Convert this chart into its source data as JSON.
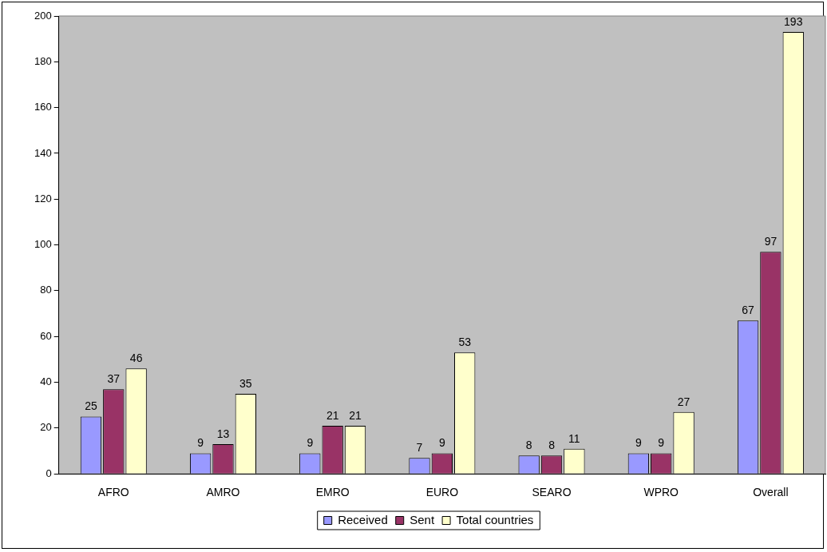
{
  "chart_data": {
    "type": "bar",
    "categories": [
      "AFRO",
      "AMRO",
      "EMRO",
      "EURO",
      "SEARO",
      "WPRO",
      "Overall"
    ],
    "series": [
      {
        "name": "Received",
        "color": "#9999ff",
        "values": [
          25,
          9,
          9,
          7,
          8,
          9,
          67
        ]
      },
      {
        "name": "Sent",
        "color": "#993366",
        "values": [
          37,
          13,
          21,
          9,
          8,
          9,
          97
        ]
      },
      {
        "name": "Total countries",
        "color": "#ffffcc",
        "values": [
          46,
          35,
          21,
          53,
          11,
          27,
          193
        ]
      }
    ],
    "ylim": [
      0,
      200
    ],
    "yticks": [
      0,
      20,
      40,
      60,
      80,
      100,
      120,
      140,
      160,
      180,
      200
    ],
    "grid": false,
    "legend": "bottom",
    "data_labels": true
  }
}
